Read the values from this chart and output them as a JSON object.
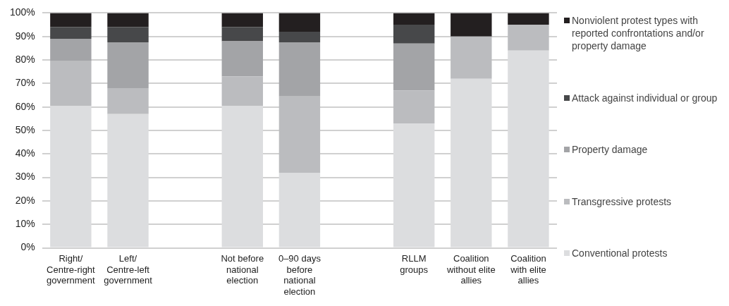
{
  "chart_data": {
    "type": "bar",
    "stacked": true,
    "categories": [
      "Right/ Centre-right government",
      "Left/ Centre-left government",
      null,
      "Not before national election",
      "0–90 days before national election",
      null,
      "RLLM groups",
      "Coalition without elite allies",
      "Coalition with elite allies"
    ],
    "series": [
      {
        "name": "Conventional protests",
        "color": "#dcdddf",
        "values": [
          60.5,
          57,
          null,
          60.5,
          32,
          null,
          53,
          72,
          84
        ]
      },
      {
        "name": "Transgressive protests",
        "color": "#bbbcbf",
        "values": [
          19,
          11,
          null,
          12.5,
          32.5,
          null,
          14,
          18,
          11
        ]
      },
      {
        "name": "Property damage",
        "color": "#a3a4a7",
        "values": [
          9.5,
          19.5,
          null,
          15,
          23,
          null,
          20,
          0,
          0
        ]
      },
      {
        "name": "Attack against individual or group",
        "color": "#47484a",
        "values": [
          5,
          6.5,
          null,
          6,
          4.5,
          null,
          8,
          0,
          0
        ]
      },
      {
        "name": "Nonviolent protest types with reported confrontations and/or property damage",
        "color": "#231f20",
        "values": [
          6,
          6,
          null,
          6,
          8,
          null,
          5,
          10,
          5
        ]
      }
    ],
    "ylim": [
      0,
      100
    ],
    "yticks": [
      {
        "value": 0,
        "label": "0%"
      },
      {
        "value": 10,
        "label": "10%"
      },
      {
        "value": 20,
        "label": "20%"
      },
      {
        "value": 30,
        "label": "30%"
      },
      {
        "value": 40,
        "label": "40%"
      },
      {
        "value": 50,
        "label": "50%"
      },
      {
        "value": 60,
        "label": "60%"
      },
      {
        "value": 70,
        "label": "70%"
      },
      {
        "value": 80,
        "label": "80%"
      },
      {
        "value": 90,
        "label": "90%"
      },
      {
        "value": 100,
        "label": "100%"
      }
    ],
    "grid": "y",
    "legend": "right"
  }
}
